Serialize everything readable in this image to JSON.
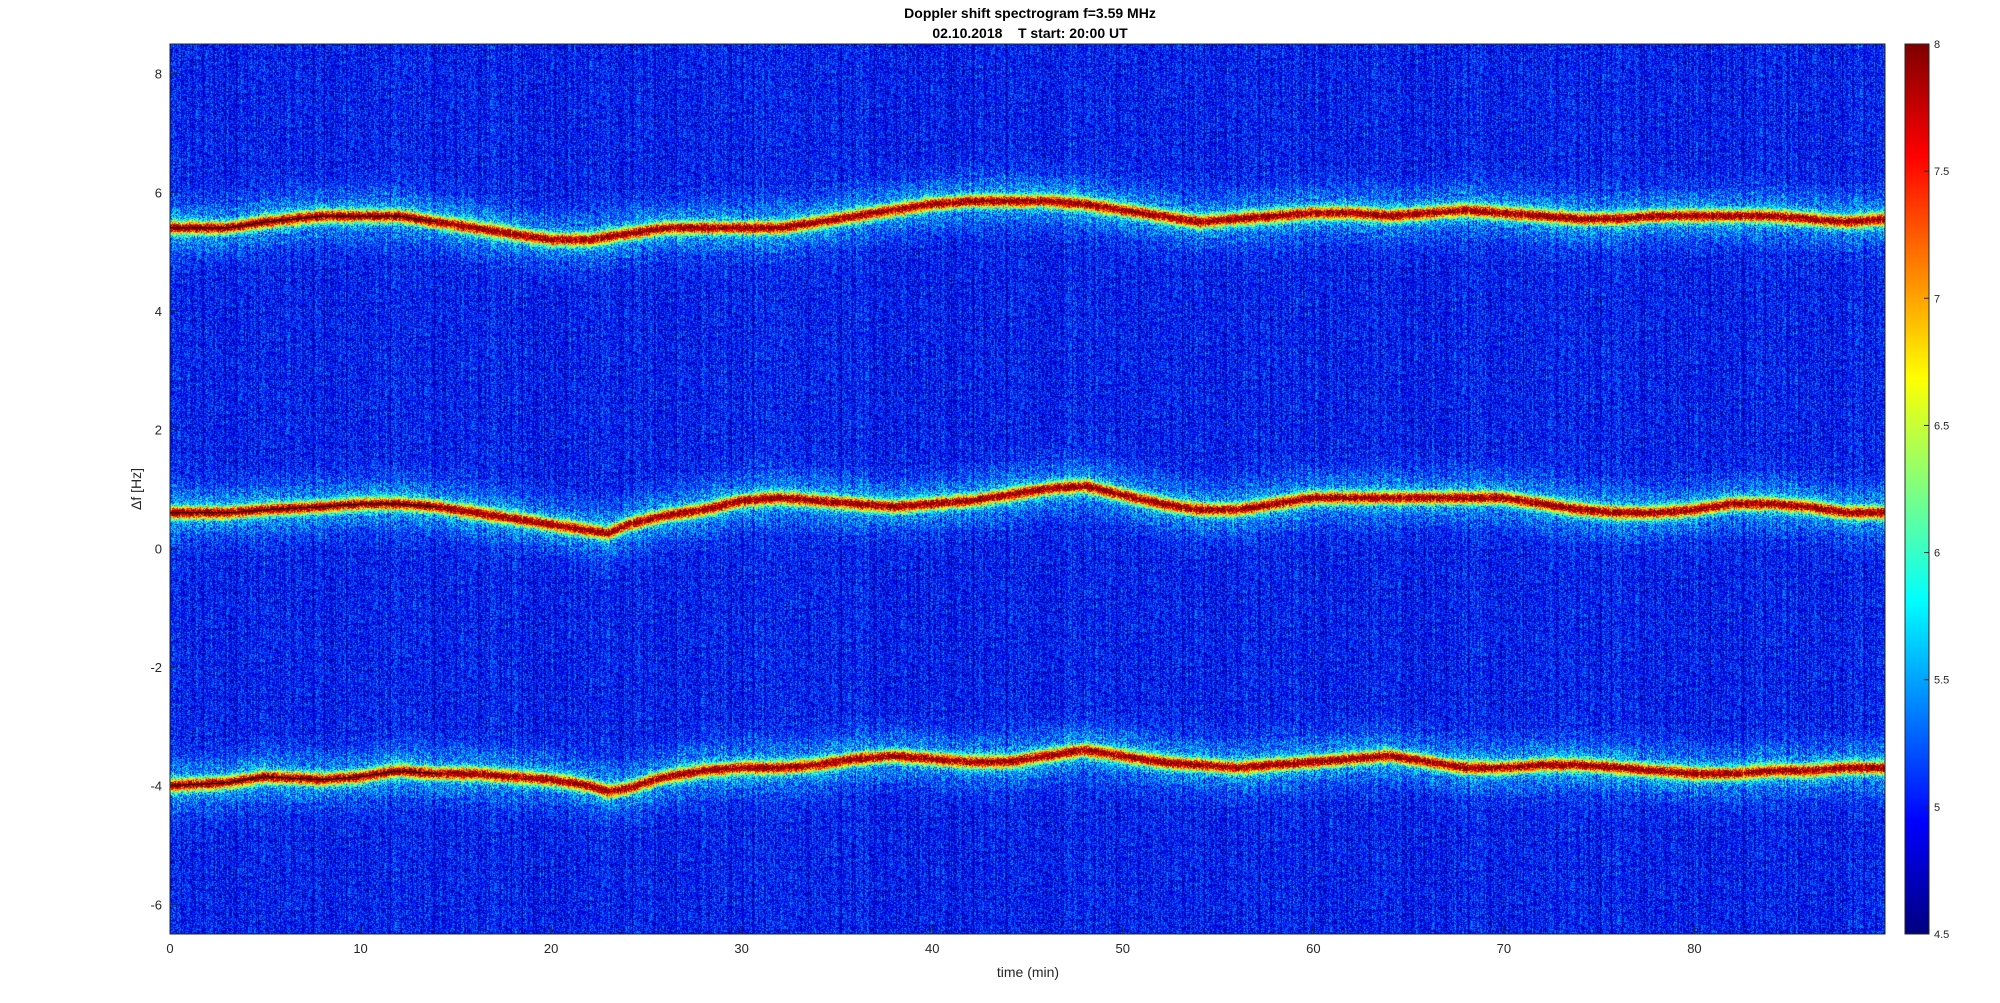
{
  "chart_data": {
    "type": "heatmap",
    "title": "Doppler shift spectrogram f=3.59 MHz",
    "subtitle": "02.10.2018    T start: 20:00 UT",
    "xlabel": "time (min)",
    "ylabel": "Δf [Hz]",
    "xlim": [
      0,
      90
    ],
    "ylim": [
      -6.5,
      8.5
    ],
    "x_ticks": [
      0,
      10,
      20,
      30,
      40,
      50,
      60,
      70,
      80
    ],
    "y_ticks": [
      8,
      6,
      4,
      2,
      0,
      -2,
      -4,
      -6
    ],
    "colorbar": {
      "colormap": "jet",
      "clim": [
        4.5,
        8
      ],
      "ticks": [
        8,
        7.5,
        7,
        6.5,
        6,
        5.5,
        5,
        4.5
      ]
    },
    "series": [
      {
        "x": [
          0,
          3,
          5,
          8,
          10,
          12,
          14,
          16,
          18,
          20,
          22,
          24,
          26,
          28,
          30,
          32,
          34,
          36,
          38,
          40,
          42,
          44,
          46,
          48,
          50,
          52,
          54,
          56,
          58,
          60,
          62,
          64,
          66,
          68,
          70,
          72,
          74,
          76,
          78,
          80,
          82,
          84,
          86,
          88,
          90
        ],
        "y": [
          5.4,
          5.4,
          5.5,
          5.6,
          5.6,
          5.6,
          5.5,
          5.4,
          5.3,
          5.2,
          5.2,
          5.3,
          5.4,
          5.4,
          5.4,
          5.4,
          5.5,
          5.6,
          5.7,
          5.8,
          5.85,
          5.85,
          5.85,
          5.8,
          5.7,
          5.6,
          5.5,
          5.55,
          5.6,
          5.65,
          5.65,
          5.6,
          5.65,
          5.7,
          5.65,
          5.6,
          5.55,
          5.55,
          5.6,
          5.6,
          5.6,
          5.6,
          5.55,
          5.5,
          5.55
        ]
      },
      {
        "x": [
          0,
          3,
          5,
          8,
          10,
          12,
          14,
          16,
          18,
          20,
          22,
          23,
          24,
          26,
          28,
          30,
          32,
          34,
          36,
          38,
          40,
          42,
          44,
          46,
          48,
          50,
          52,
          54,
          56,
          58,
          60,
          62,
          64,
          66,
          68,
          70,
          72,
          74,
          76,
          78,
          80,
          82,
          84,
          86,
          88,
          90
        ],
        "y": [
          0.6,
          0.6,
          0.65,
          0.7,
          0.75,
          0.75,
          0.7,
          0.6,
          0.5,
          0.4,
          0.3,
          0.25,
          0.4,
          0.55,
          0.65,
          0.8,
          0.85,
          0.8,
          0.75,
          0.7,
          0.75,
          0.8,
          0.9,
          1.0,
          1.05,
          0.9,
          0.75,
          0.65,
          0.65,
          0.75,
          0.85,
          0.85,
          0.85,
          0.85,
          0.85,
          0.85,
          0.75,
          0.65,
          0.6,
          0.6,
          0.65,
          0.75,
          0.75,
          0.7,
          0.6,
          0.6
        ]
      },
      {
        "x": [
          0,
          3,
          5,
          8,
          10,
          12,
          14,
          16,
          18,
          20,
          22,
          23,
          24,
          26,
          28,
          30,
          32,
          34,
          36,
          38,
          40,
          42,
          44,
          46,
          48,
          50,
          52,
          54,
          56,
          58,
          60,
          62,
          64,
          66,
          68,
          70,
          72,
          74,
          76,
          78,
          80,
          82,
          84,
          86,
          88,
          90
        ],
        "y": [
          -4.0,
          -3.95,
          -3.85,
          -3.9,
          -3.85,
          -3.75,
          -3.8,
          -3.8,
          -3.85,
          -3.9,
          -4.0,
          -4.1,
          -4.05,
          -3.85,
          -3.75,
          -3.7,
          -3.7,
          -3.65,
          -3.55,
          -3.5,
          -3.55,
          -3.6,
          -3.6,
          -3.5,
          -3.4,
          -3.5,
          -3.6,
          -3.65,
          -3.7,
          -3.65,
          -3.6,
          -3.55,
          -3.5,
          -3.6,
          -3.7,
          -3.7,
          -3.65,
          -3.65,
          -3.7,
          -3.75,
          -3.8,
          -3.8,
          -3.75,
          -3.75,
          -3.7,
          -3.7
        ]
      }
    ]
  }
}
